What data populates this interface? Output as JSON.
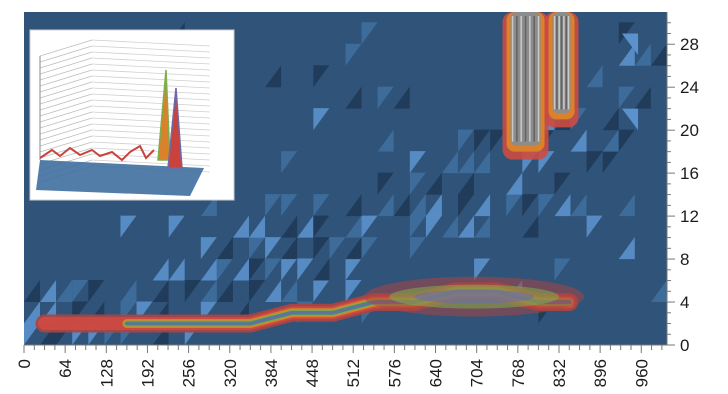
{
  "chart_data": {
    "type": "heatmap",
    "title": "",
    "xlabel": "",
    "ylabel": "",
    "xlim": [
      0,
      1000
    ],
    "ylim": [
      0,
      31
    ],
    "x_ticks": [
      0,
      64,
      128,
      192,
      256,
      320,
      384,
      448,
      512,
      576,
      640,
      704,
      768,
      832,
      896,
      960
    ],
    "y_ticks": [
      0,
      4,
      8,
      12,
      16,
      20,
      24,
      28
    ],
    "y_axis_side": "right",
    "background_color": "#2f5379",
    "palette": [
      "#2f5379",
      "#3f6f9e",
      "#5b91cc",
      "#1f3a57",
      "#a84444",
      "#cc4b43",
      "#d9822b",
      "#7fae4a",
      "#3f8a7a",
      "#6e6aa8",
      "#8c8c8c",
      "#d9d9d9"
    ],
    "peaks": [
      {
        "x": 780,
        "y_range": [
          18,
          31
        ],
        "value": "max"
      },
      {
        "x": 836,
        "y_range": [
          21,
          31
        ],
        "value": "max"
      }
    ],
    "ridge": [
      {
        "x": 32,
        "y": 2,
        "value": 1
      },
      {
        "x": 96,
        "y": 2,
        "value": 1
      },
      {
        "x": 160,
        "y": 2,
        "value": 2
      },
      {
        "x": 224,
        "y": 2,
        "value": 1
      },
      {
        "x": 288,
        "y": 2,
        "value": 1
      },
      {
        "x": 352,
        "y": 2,
        "value": 2
      },
      {
        "x": 416,
        "y": 3,
        "value": 2
      },
      {
        "x": 480,
        "y": 3,
        "value": 3
      },
      {
        "x": 544,
        "y": 4,
        "value": 3
      },
      {
        "x": 608,
        "y": 4,
        "value": 4
      },
      {
        "x": 672,
        "y": 5,
        "value": 4
      },
      {
        "x": 736,
        "y": 5,
        "value": 5
      },
      {
        "x": 800,
        "y": 4,
        "value": 4
      },
      {
        "x": 848,
        "y": 4,
        "value": 3
      }
    ],
    "inset": {
      "type": "surface3d",
      "description_visible": false
    }
  }
}
